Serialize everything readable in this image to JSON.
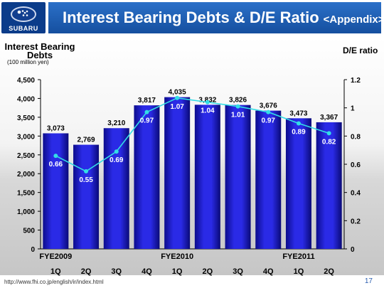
{
  "header": {
    "logo_text": "SUBARU",
    "title": "Interest Bearing Debts & D/E Ratio",
    "title_suffix": "<Appendix>"
  },
  "footer": {
    "url": "http://www.fhi.co.jp/english/ir/index.html",
    "page": "17"
  },
  "chart_data": {
    "type": "bar",
    "ylabel": "Interest Bearing Debts",
    "yunit": "(100 million yen)",
    "y2label": "D/E ratio",
    "categories": [
      "1Q",
      "2Q",
      "3Q",
      "4Q",
      "1Q",
      "2Q",
      "3Q",
      "4Q",
      "1Q",
      "2Q"
    ],
    "fiscal_groups": [
      {
        "label": "FYE2009",
        "start_index": 0
      },
      {
        "label": "FYE2010",
        "start_index": 4
      },
      {
        "label": "FYE2011",
        "start_index": 8
      }
    ],
    "ylim": [
      0,
      4500
    ],
    "y_ticks": [
      0,
      500,
      1000,
      1500,
      2000,
      2500,
      3000,
      3500,
      4000,
      4500
    ],
    "y_tick_labels": [
      "0",
      "500",
      "1,000",
      "1,500",
      "2,000",
      "2,500",
      "3,000",
      "3,500",
      "4,000",
      "4,500"
    ],
    "y2lim": [
      0,
      1.2
    ],
    "y2_ticks": [
      0,
      0.2,
      0.4,
      0.6,
      0.8,
      1,
      1.2
    ],
    "y2_tick_labels": [
      "0",
      "0.2",
      "0.4",
      "0.6",
      "0.8",
      "1",
      "1.2"
    ],
    "series": [
      {
        "name": "Interest Bearing Debts",
        "type": "bar",
        "values": [
          3073,
          2769,
          3210,
          3817,
          4035,
          3832,
          3826,
          3676,
          3473,
          3367
        ],
        "labels": [
          "3,073",
          "2,769",
          "3,210",
          "3,817",
          "4,035",
          "3,832",
          "3,826",
          "3,676",
          "3,473",
          "3,367"
        ],
        "color": "#1a1acc"
      },
      {
        "name": "D/E ratio",
        "type": "line",
        "axis": "right",
        "values": [
          0.66,
          0.55,
          0.69,
          0.97,
          1.07,
          1.04,
          1.01,
          0.97,
          0.89,
          0.82
        ],
        "labels": [
          "0.66",
          "0.55",
          "0.69",
          "0.97",
          "1.07",
          "1.04",
          "1.01",
          "0.97",
          "0.89",
          "0.82"
        ],
        "color": "#33dde6"
      }
    ],
    "grid": false
  }
}
